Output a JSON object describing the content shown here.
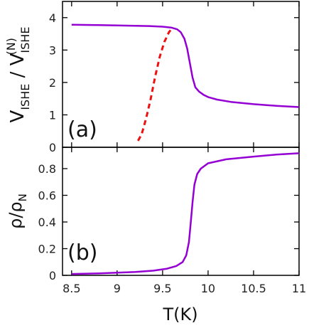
{
  "chart_data": [
    {
      "type": "line",
      "panel_label": "(a)",
      "ylabel": {
        "main": "V",
        "sub": "ISHE",
        "sep": " / V",
        "sup": "(N)"
      },
      "xlim": [
        8.4,
        11
      ],
      "ylim": [
        0,
        4.5
      ],
      "yticks": [
        "0",
        "1",
        "2",
        "3",
        "4"
      ],
      "grid": false,
      "series": [
        {
          "color": "#9400D3",
          "style": "solid",
          "points": [
            [
              8.5,
              3.78
            ],
            [
              8.8,
              3.77
            ],
            [
              9.0,
              3.76
            ],
            [
              9.2,
              3.75
            ],
            [
              9.35,
              3.74
            ],
            [
              9.5,
              3.72
            ],
            [
              9.6,
              3.69
            ],
            [
              9.66,
              3.64
            ],
            [
              9.7,
              3.55
            ],
            [
              9.74,
              3.35
            ],
            [
              9.77,
              3.05
            ],
            [
              9.8,
              2.6
            ],
            [
              9.83,
              2.15
            ],
            [
              9.86,
              1.85
            ],
            [
              9.9,
              1.72
            ],
            [
              9.95,
              1.62
            ],
            [
              10.0,
              1.55
            ],
            [
              10.1,
              1.47
            ],
            [
              10.25,
              1.4
            ],
            [
              10.5,
              1.33
            ],
            [
              10.75,
              1.28
            ],
            [
              11.0,
              1.24
            ]
          ]
        },
        {
          "color": "#EE1111",
          "style": "dashed",
          "points": [
            [
              9.23,
              0.2
            ],
            [
              9.27,
              0.4
            ],
            [
              9.32,
              0.9
            ],
            [
              9.37,
              1.5
            ],
            [
              9.42,
              2.2
            ],
            [
              9.47,
              2.8
            ],
            [
              9.52,
              3.25
            ],
            [
              9.57,
              3.55
            ],
            [
              9.61,
              3.69
            ]
          ]
        }
      ]
    },
    {
      "type": "line",
      "panel_label": "(b)",
      "ylabel": {
        "main": "ρ/ρ",
        "sub": "N"
      },
      "xlabel": "T(K)",
      "xlim": [
        8.4,
        11
      ],
      "ylim": [
        0,
        0.96
      ],
      "xticks": [
        "8.5",
        "9",
        "9.5",
        "10",
        "10.5",
        "11"
      ],
      "yticks": [
        "0",
        "0.2",
        "0.4",
        "0.6",
        "0.8"
      ],
      "grid": false,
      "series": [
        {
          "color": "#9400D3",
          "style": "solid",
          "points": [
            [
              8.5,
              0.01
            ],
            [
              8.8,
              0.015
            ],
            [
              9.0,
              0.02
            ],
            [
              9.2,
              0.025
            ],
            [
              9.4,
              0.035
            ],
            [
              9.55,
              0.05
            ],
            [
              9.65,
              0.07
            ],
            [
              9.72,
              0.1
            ],
            [
              9.76,
              0.15
            ],
            [
              9.79,
              0.25
            ],
            [
              9.81,
              0.4
            ],
            [
              9.83,
              0.55
            ],
            [
              9.85,
              0.68
            ],
            [
              9.88,
              0.76
            ],
            [
              9.92,
              0.8
            ],
            [
              10.0,
              0.84
            ],
            [
              10.2,
              0.87
            ],
            [
              10.5,
              0.89
            ],
            [
              10.75,
              0.905
            ],
            [
              11.0,
              0.915
            ]
          ]
        }
      ]
    }
  ]
}
